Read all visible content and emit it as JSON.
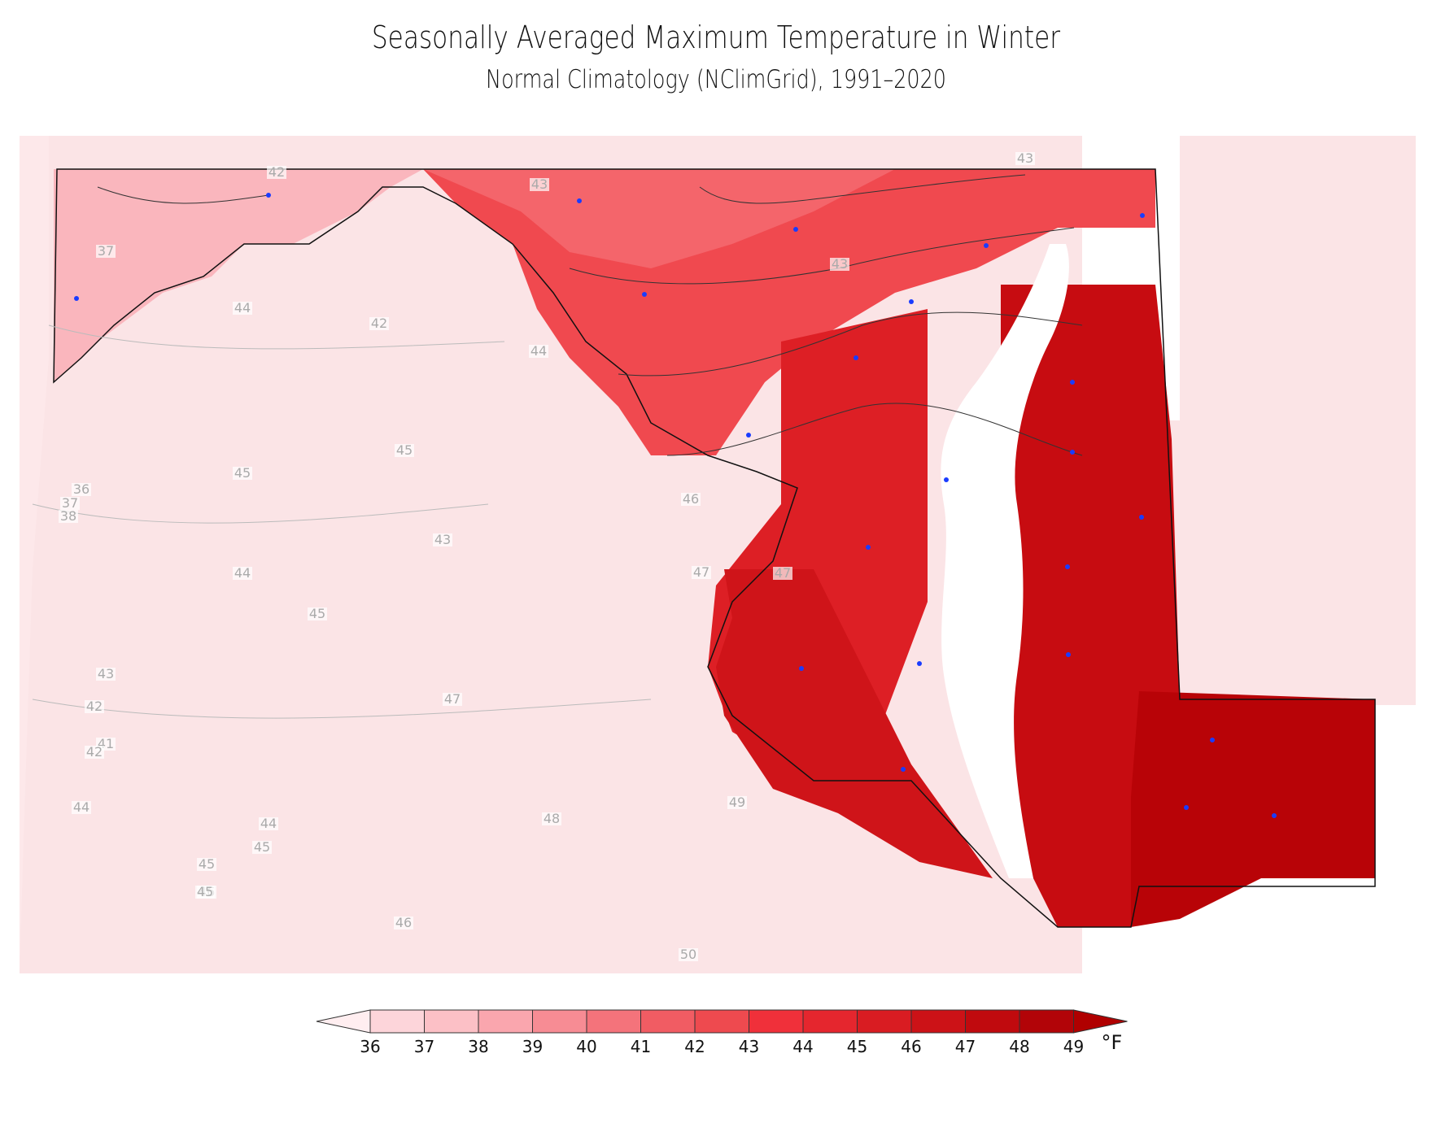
{
  "title": "Seasonally Averaged Maximum Temperature in Winter",
  "subtitle": "Normal Climatology (NClimGrid), 1991–2020",
  "colorbar": {
    "ticks": [
      "36",
      "37",
      "38",
      "39",
      "40",
      "41",
      "42",
      "43",
      "44",
      "45",
      "46",
      "47",
      "48",
      "49"
    ],
    "unit": "°F",
    "colors": [
      "#fdd5da",
      "#fcc0c6",
      "#faa6ae",
      "#f78c94",
      "#f4737b",
      "#f15c63",
      "#ee4a4f",
      "#f0303a",
      "#e5262e",
      "#d91c22",
      "#cc1217",
      "#c00a0e",
      "#b20408"
    ],
    "under_color": "#ffeef0",
    "over_color": "#b00000"
  },
  "map": {
    "background_color": "#fbe4e6",
    "state_labels": {
      "md_west": "42",
      "md_north": "43"
    },
    "contour_labels": [
      "37",
      "42",
      "43",
      "43",
      "43",
      "44",
      "44",
      "45",
      "46",
      "47",
      "48",
      "49",
      "50",
      "36",
      "37",
      "38",
      "41",
      "42",
      "42",
      "43",
      "44",
      "44",
      "45",
      "45",
      "46",
      "45",
      "42",
      "43",
      "44",
      "45",
      "45",
      "46",
      "47",
      "47"
    ]
  }
}
